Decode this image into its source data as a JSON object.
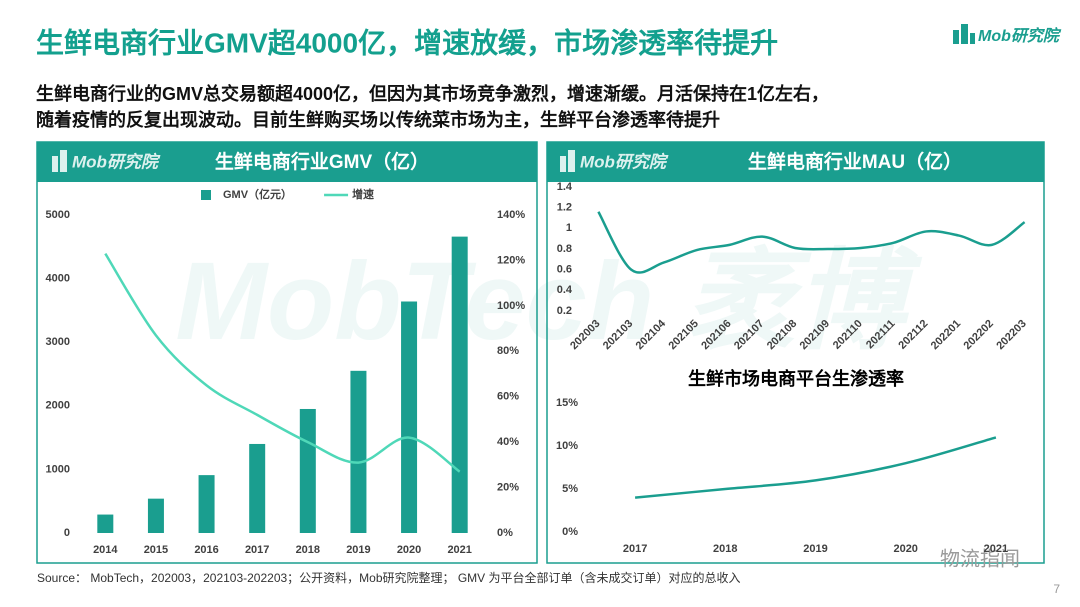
{
  "header": {
    "title": "生鲜电商行业GMV超4000亿，增速放缓，市场渗透率待提升",
    "logo": "Mob研究院"
  },
  "summary": [
    "生鲜电商行业的GMV总交易额超4000亿，但因为其市场竞争激烈，增速渐缓。月活保持在1亿左右，",
    "随着疫情的反复出现波动。目前生鲜购买场以传统菜市场为主，生鲜平台渗透率待提升"
  ],
  "watermarks": [
    "MobTech 袤博",
    "物流指闻"
  ],
  "source": "Source： MobTech，202003，202103-202203；公开资料，Mob研究院整理； GMV 为平台全部订单（含未成交订单）对应的总收入",
  "page_number": "7",
  "chart_data": [
    {
      "type": "bar",
      "title": "生鲜电商行业GMV（亿）",
      "categories": [
        "2014",
        "2015",
        "2016",
        "2017",
        "2018",
        "2019",
        "2020",
        "2021"
      ],
      "series": [
        {
          "name": "GMV（亿元）",
          "color": "#1a9e8f",
          "values": [
            290,
            540,
            910,
            1400,
            1950,
            2550,
            3640,
            4660
          ]
        },
        {
          "name": "增速",
          "type": "line",
          "axis": "y2",
          "color": "#4fd8b8",
          "values": [
            123,
            87,
            65,
            52,
            40,
            31,
            42,
            27
          ]
        }
      ],
      "ylim": [
        0,
        5000
      ],
      "yticks": [
        0,
        1000,
        2000,
        3000,
        4000,
        5000
      ],
      "y2lim": [
        0,
        140
      ],
      "y2ticks": [
        {
          "value": 0,
          "label": "0%"
        },
        {
          "value": 20,
          "label": "20%"
        },
        {
          "value": 40,
          "label": "40%"
        },
        {
          "value": 60,
          "label": "60%"
        },
        {
          "value": 80,
          "label": "80%"
        },
        {
          "value": 100,
          "label": "100%"
        },
        {
          "value": 120,
          "label": "120%"
        },
        {
          "value": 140,
          "label": "140%"
        }
      ],
      "legend": "top"
    },
    {
      "type": "line",
      "title": "生鲜电商行业MAU（亿）",
      "categories": [
        "202003",
        "202103",
        "202104",
        "202105",
        "202106",
        "202107",
        "202108",
        "202109",
        "202110",
        "202111",
        "202112",
        "202201",
        "202202",
        "202203"
      ],
      "values": [
        1.16,
        0.6,
        0.67,
        0.79,
        0.84,
        0.92,
        0.81,
        0.8,
        0.81,
        0.86,
        0.97,
        0.93,
        0.84,
        1.06
      ],
      "color": "#1a9e8f",
      "ylim": [
        0.2,
        1.4
      ],
      "yticks": [
        0.2,
        0.4,
        0.6,
        0.8,
        1,
        1.2,
        1.4
      ]
    },
    {
      "type": "line",
      "title": "生鲜市场电商平台生渗透率",
      "categories": [
        "2017",
        "2018",
        "2019",
        "2020",
        "2021"
      ],
      "values": [
        4,
        5,
        6,
        8,
        11
      ],
      "color": "#1a9e8f",
      "ylim": [
        0,
        15
      ],
      "yticks": [
        {
          "value": 0,
          "label": "0%"
        },
        {
          "value": 5,
          "label": "5%"
        },
        {
          "value": 10,
          "label": "10%"
        },
        {
          "value": 15,
          "label": "15%"
        }
      ]
    }
  ]
}
